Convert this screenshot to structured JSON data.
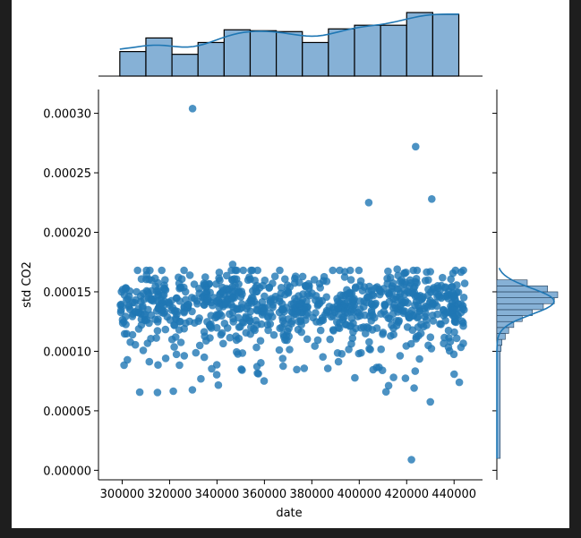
{
  "chart_data": {
    "type": "scatter",
    "subtype": "jointplot",
    "xlabel": "date",
    "ylabel": "std CO2",
    "xlim": [
      290000,
      452000
    ],
    "ylim": [
      -8e-06,
      0.00032
    ],
    "x_ticks": [
      300000,
      320000,
      340000,
      360000,
      380000,
      400000,
      420000,
      440000
    ],
    "x_tick_labels": [
      "300000",
      "320000",
      "340000",
      "360000",
      "380000",
      "400000",
      "420000",
      "440000"
    ],
    "y_ticks": [
      0,
      5e-05,
      0.0001,
      0.00015,
      0.0002,
      0.00025,
      0.0003
    ],
    "y_tick_labels": [
      "0.00000",
      "0.00005",
      "0.00010",
      "0.00015",
      "0.00020",
      "0.00025",
      "0.00030"
    ],
    "grid": false,
    "color": "#1f77b4",
    "outliers": [
      {
        "x": 329700,
        "y": 0.000304
      },
      {
        "x": 423800,
        "y": 0.000272
      },
      {
        "x": 430600,
        "y": 0.000228
      },
      {
        "x": 404000,
        "y": 0.000225
      },
      {
        "x": 422000,
        "y": 8.9e-06
      },
      {
        "x": 430000,
        "y": 5.75e-05
      },
      {
        "x": 346600,
        "y": 0.000173
      },
      {
        "x": 416000,
        "y": 0.000169
      }
    ],
    "scatter_band": {
      "x_range": [
        299000,
        444500
      ],
      "core_mean": 0.000138,
      "core_spread": 1.5e-05,
      "n_points": 900
    },
    "x_histogram": {
      "bin_edges": [
        299000,
        310000,
        321000,
        332000,
        343000,
        354000,
        365000,
        376000,
        387000,
        398000,
        409000,
        420000,
        431000,
        442000
      ],
      "counts": [
        27,
        42,
        24,
        37,
        51,
        50,
        49,
        37,
        52,
        56,
        56,
        70,
        68
      ]
    },
    "y_histogram": {
      "bin_edges": [
        1e-05,
        0.0001,
        0.000105,
        0.00011,
        0.000115,
        0.00012,
        0.000125,
        0.00013,
        0.000135,
        0.00014,
        0.000145,
        0.00015,
        0.000155,
        0.00016
      ],
      "counts": [
        4,
        5,
        6,
        10,
        14,
        20,
        30,
        42,
        55,
        68,
        72,
        60,
        36
      ]
    }
  }
}
